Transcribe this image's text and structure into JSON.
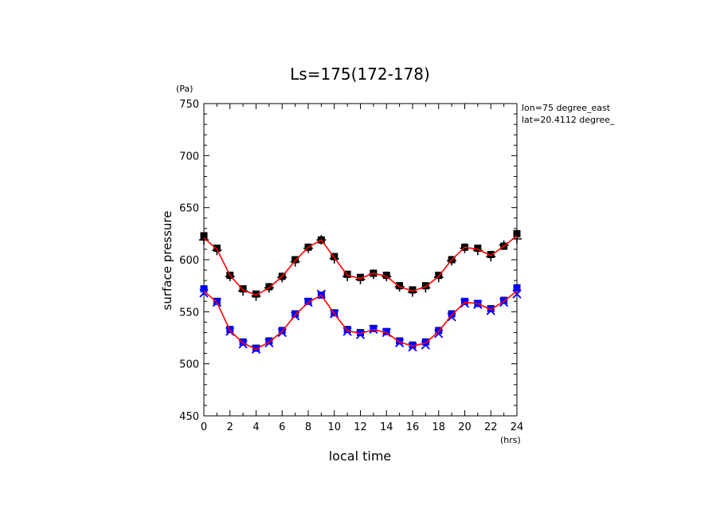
{
  "chart_data": {
    "type": "line",
    "title": "Ls=175(172-178)",
    "xlabel": "local time",
    "ylabel": "surface pressure",
    "x_unit": "(hrs)",
    "y_unit": "(Pa)",
    "annotations": [
      "lon=75 degree_east",
      "lat=20.4112 degree_"
    ],
    "xlim": [
      0,
      24
    ],
    "ylim": [
      450,
      750
    ],
    "x_ticks": [
      "0",
      "2",
      "4",
      "6",
      "8",
      "10",
      "12",
      "14",
      "16",
      "18",
      "20",
      "22",
      "24"
    ],
    "y_ticks": [
      "450",
      "500",
      "550",
      "600",
      "650",
      "700",
      "750"
    ],
    "grid": false,
    "x": [
      0,
      1,
      2,
      3,
      4,
      5,
      6,
      7,
      8,
      9,
      10,
      11,
      12,
      13,
      14,
      15,
      16,
      17,
      18,
      19,
      20,
      21,
      22,
      23,
      24
    ],
    "series": [
      {
        "color": "#000000",
        "marker": "square",
        "values": [
          623,
          611,
          585,
          572,
          567,
          574,
          584,
          600,
          612,
          619,
          603,
          586,
          583,
          587,
          585,
          575,
          571,
          575,
          585,
          600,
          612,
          611,
          605,
          613,
          625
        ]
      },
      {
        "color": "#000000",
        "marker": "plus",
        "values": [
          619,
          609,
          584,
          570,
          565,
          573,
          583,
          598,
          611,
          619,
          601,
          584,
          581,
          586,
          584,
          574,
          569,
          573,
          583,
          599,
          611,
          609,
          603,
          614,
          620
        ]
      },
      {
        "color": "#0000ff",
        "marker": "square",
        "values": [
          572,
          560,
          533,
          521,
          515,
          522,
          532,
          548,
          560,
          566,
          549,
          533,
          530,
          534,
          531,
          522,
          518,
          521,
          532,
          548,
          560,
          558,
          553,
          561,
          573
        ]
      },
      {
        "color": "#0000ff",
        "marker": "x",
        "values": [
          568,
          559,
          531,
          519,
          514,
          520,
          530,
          546,
          559,
          567,
          548,
          531,
          528,
          533,
          530,
          520,
          516,
          518,
          529,
          545,
          558,
          557,
          551,
          559,
          567
        ]
      },
      {
        "color": "#ff0000",
        "marker": "none",
        "values": [
          621,
          610,
          585,
          571,
          566,
          573,
          584,
          599,
          612,
          619,
          602,
          585,
          582,
          587,
          584,
          574,
          570,
          574,
          584,
          600,
          612,
          610,
          604,
          613,
          623
        ]
      },
      {
        "color": "#ff0000",
        "marker": "none",
        "values": [
          570,
          559,
          532,
          520,
          514,
          521,
          531,
          547,
          559,
          566,
          548,
          532,
          529,
          533,
          530,
          521,
          517,
          520,
          531,
          547,
          559,
          558,
          552,
          560,
          570
        ]
      }
    ]
  }
}
